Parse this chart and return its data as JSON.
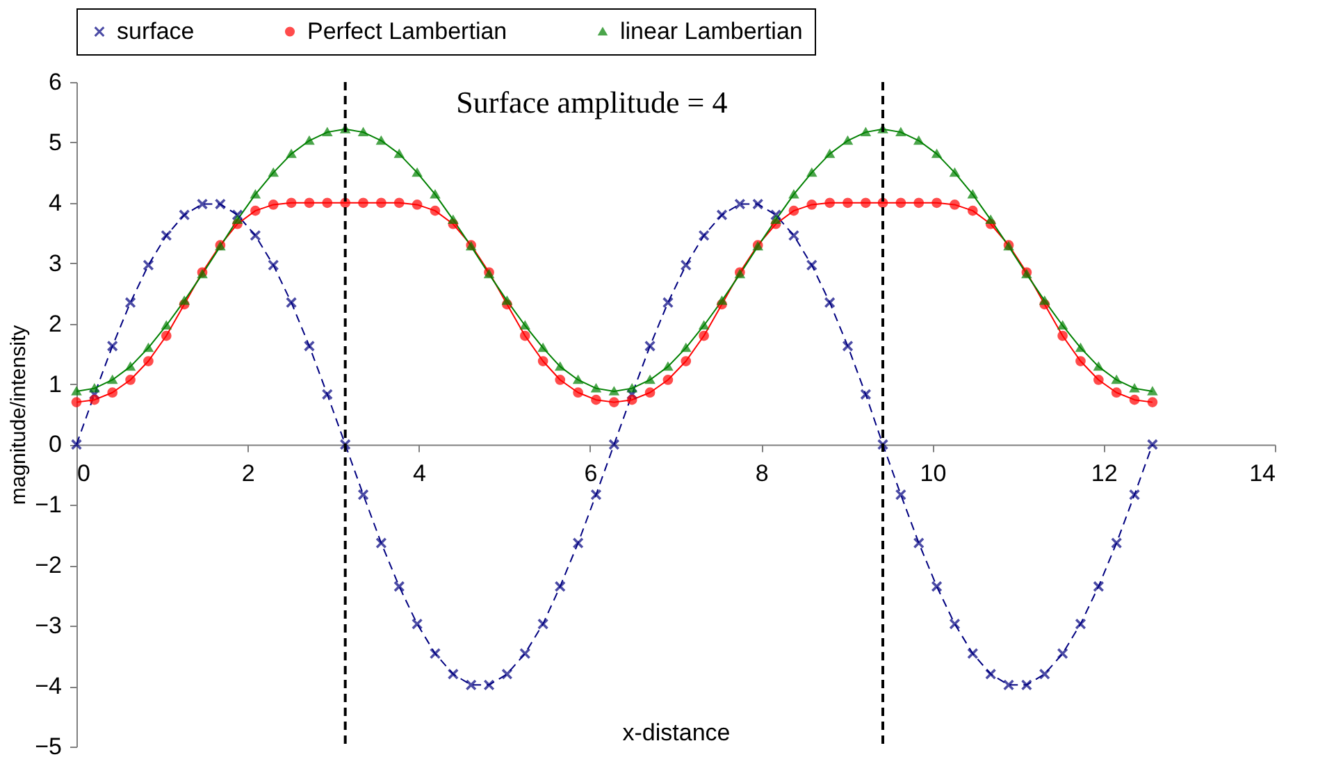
{
  "chart_data": {
    "type": "line",
    "xlabel": "x-distance",
    "ylabel": "magnitude/intensity",
    "annotations": [
      "Surface amplitude = 4"
    ],
    "x": [
      0,
      0.21,
      0.42,
      0.63,
      0.84,
      1.05,
      1.26,
      1.47,
      1.68,
      1.88,
      2.09,
      2.3,
      2.51,
      2.72,
      2.93,
      3.14,
      3.35,
      3.56,
      3.77,
      3.98,
      4.19,
      4.4,
      4.61,
      4.82,
      5.03,
      5.24,
      5.45,
      5.65,
      5.86,
      6.07,
      6.28,
      6.49,
      6.7,
      6.91,
      7.12,
      7.33,
      7.54,
      7.75,
      7.96,
      8.17,
      8.38,
      8.59,
      8.8,
      9.01,
      9.22,
      9.42,
      9.63,
      9.84,
      10.05,
      10.26,
      10.47,
      10.68,
      10.89,
      11.1,
      11.31,
      11.52,
      11.73,
      11.94,
      12.15,
      12.36,
      12.57
    ],
    "series": [
      {
        "name": "surface",
        "color": "#000080",
        "marker": "cross",
        "line_style": "dashed",
        "values": [
          0,
          0.83,
          1.63,
          2.35,
          2.97,
          3.46,
          3.8,
          3.98,
          3.98,
          3.8,
          3.46,
          2.97,
          2.35,
          1.63,
          0.83,
          0,
          -0.83,
          -1.63,
          -2.35,
          -2.97,
          -3.46,
          -3.8,
          -3.98,
          -3.98,
          -3.8,
          -3.46,
          -2.97,
          -2.35,
          -1.63,
          -0.83,
          0,
          0.83,
          1.63,
          2.35,
          2.97,
          3.46,
          3.8,
          3.98,
          3.98,
          3.8,
          3.46,
          2.97,
          2.35,
          1.63,
          0.83,
          0,
          -0.83,
          -1.63,
          -2.35,
          -2.97,
          -3.46,
          -3.8,
          -3.98,
          -3.98,
          -3.8,
          -3.46,
          -2.97,
          -2.35,
          -1.63,
          -0.83,
          0
        ]
      },
      {
        "name": "Perfect Lambertian",
        "color": "#ff0000",
        "marker": "circle",
        "line_style": "solid",
        "values": [
          0.7,
          0.74,
          0.86,
          1.07,
          1.38,
          1.8,
          2.32,
          2.85,
          3.3,
          3.65,
          3.87,
          3.97,
          4.0,
          4.0,
          4.0,
          4.0,
          4.0,
          4.0,
          4.0,
          3.97,
          3.87,
          3.65,
          3.3,
          2.85,
          2.32,
          1.8,
          1.38,
          1.07,
          0.86,
          0.74,
          0.7,
          0.74,
          0.86,
          1.07,
          1.38,
          1.8,
          2.32,
          2.85,
          3.3,
          3.65,
          3.87,
          3.97,
          4.0,
          4.0,
          4.0,
          4.0,
          4.0,
          4.0,
          4.0,
          3.97,
          3.87,
          3.65,
          3.3,
          2.85,
          2.32,
          1.8,
          1.38,
          1.07,
          0.86,
          0.74,
          0.7
        ]
      },
      {
        "name": "linear Lambertian",
        "color": "#008000",
        "marker": "triangle",
        "line_style": "solid",
        "values": [
          0.88,
          0.93,
          1.07,
          1.29,
          1.6,
          1.97,
          2.38,
          2.82,
          3.28,
          3.72,
          4.14,
          4.5,
          4.81,
          5.03,
          5.17,
          5.22,
          5.17,
          5.03,
          4.81,
          4.5,
          4.14,
          3.72,
          3.28,
          2.82,
          2.38,
          1.97,
          1.6,
          1.29,
          1.07,
          0.93,
          0.88,
          0.93,
          1.07,
          1.29,
          1.6,
          1.97,
          2.38,
          2.82,
          3.28,
          3.72,
          4.14,
          4.5,
          4.81,
          5.03,
          5.17,
          5.22,
          5.17,
          5.03,
          4.81,
          4.5,
          4.14,
          3.72,
          3.28,
          2.82,
          2.38,
          1.97,
          1.6,
          1.29,
          1.07,
          0.93,
          0.88
        ]
      }
    ],
    "ref_lines": [
      {
        "axis": "x",
        "value": 3.14,
        "color": "#000000",
        "line_style": "dashed"
      },
      {
        "axis": "x",
        "value": 9.42,
        "color": "#000000",
        "line_style": "dashed"
      }
    ],
    "xlim": [
      0,
      14
    ],
    "xticks": [
      0,
      2,
      4,
      6,
      8,
      10,
      12,
      14
    ],
    "ylim": [
      -5,
      6
    ],
    "yticks": [
      -5,
      -4,
      -3,
      -2,
      -1,
      0,
      1,
      2,
      3,
      4,
      5,
      6
    ],
    "grid": false,
    "legend": "top"
  }
}
